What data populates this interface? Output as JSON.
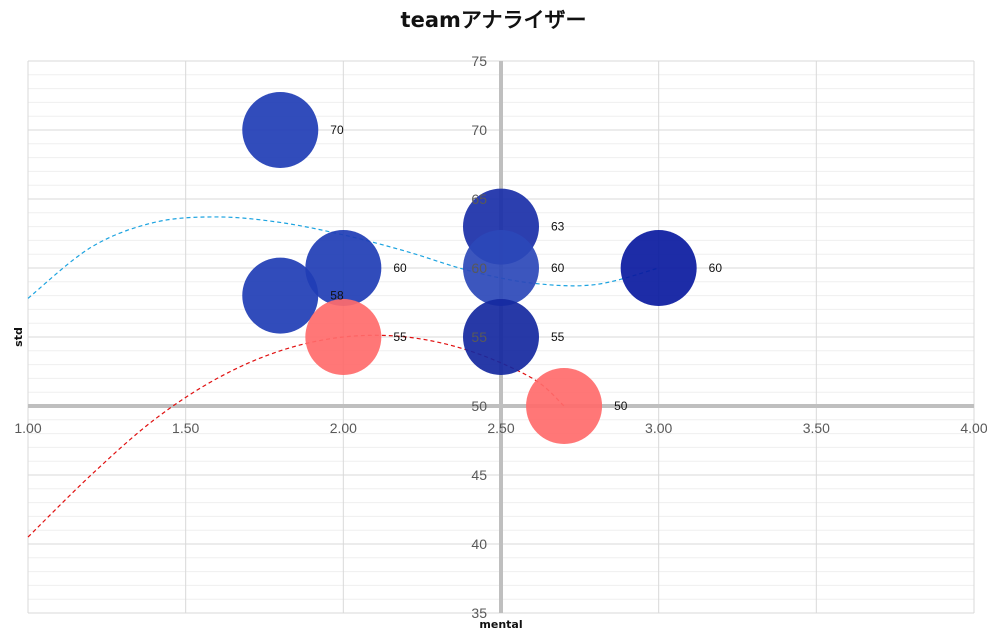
{
  "chart_data": {
    "type": "scatter",
    "subtype": "bubble",
    "title": "teamアナライザー",
    "xlabel": "mental",
    "ylabel": "std",
    "xlim": [
      1.0,
      4.0
    ],
    "ylim": [
      35,
      75
    ],
    "x_ticks": [
      "1.00",
      "1.50",
      "2.00",
      "2.50",
      "3.00",
      "3.50",
      "4.00"
    ],
    "y_ticks": [
      "35",
      "40",
      "45",
      "50",
      "55",
      "60",
      "65",
      "70",
      "75"
    ],
    "axis_cross": {
      "x": 2.5,
      "y": 50
    },
    "grid": true,
    "legend": "none",
    "bubbles": [
      {
        "x": 1.8,
        "y": 70,
        "label": "70",
        "color": "#1f3db5"
      },
      {
        "x": 1.8,
        "y": 58,
        "label": "58",
        "color": "#1f3db5"
      },
      {
        "x": 2.0,
        "y": 60,
        "label": "60",
        "color": "#1f3db5"
      },
      {
        "x": 2.0,
        "y": 55,
        "label": "55",
        "color": "#ff6b6b"
      },
      {
        "x": 2.5,
        "y": 63,
        "label": "63",
        "color": "#1a2fa8"
      },
      {
        "x": 2.5,
        "y": 60,
        "label": "60",
        "color": "#2b48b8"
      },
      {
        "x": 2.5,
        "y": 55,
        "label": "55",
        "color": "#1528a0"
      },
      {
        "x": 2.7,
        "y": 50,
        "label": "50",
        "color": "#ff6b6b"
      },
      {
        "x": 3.0,
        "y": 60,
        "label": "60",
        "color": "#0a1aa0"
      }
    ],
    "trendlines": [
      {
        "color": "#1ca3e0",
        "points": [
          [
            1.0,
            57.8
          ],
          [
            1.2,
            61.5
          ],
          [
            1.4,
            63.3
          ],
          [
            1.6,
            63.7
          ],
          [
            1.8,
            63.3
          ],
          [
            2.0,
            62.4
          ],
          [
            2.2,
            61.2
          ],
          [
            2.4,
            59.8
          ],
          [
            2.6,
            58.9
          ],
          [
            2.8,
            58.8
          ],
          [
            3.0,
            60.0
          ]
        ]
      },
      {
        "color": "#e01010",
        "points": [
          [
            1.0,
            40.5
          ],
          [
            1.2,
            45.0
          ],
          [
            1.4,
            49.0
          ],
          [
            1.6,
            52.0
          ],
          [
            1.8,
            54.0
          ],
          [
            2.0,
            55.0
          ],
          [
            2.2,
            55.0
          ],
          [
            2.4,
            54.0
          ],
          [
            2.6,
            52.0
          ],
          [
            2.7,
            50.0
          ]
        ]
      }
    ]
  }
}
